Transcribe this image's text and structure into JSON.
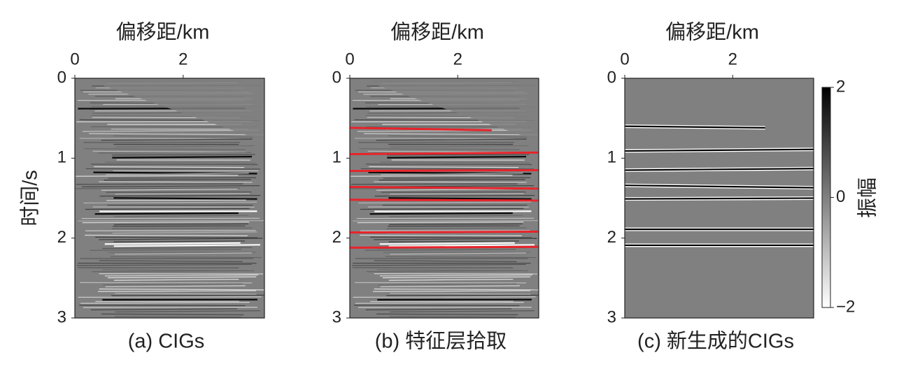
{
  "chart_data": [
    {
      "type": "seismic",
      "x_label": "偏移距/km",
      "y_label": "时间/s",
      "caption": "(a) CIGs",
      "xlim": [
        0,
        3.5
      ],
      "xticks": [
        0,
        2
      ],
      "ylim": [
        0,
        3
      ],
      "yticks": [
        0,
        1,
        2,
        3
      ]
    },
    {
      "type": "seismic",
      "x_label": "偏移距/km",
      "caption": "(b) 特征层拾取",
      "xlim": [
        0,
        3.5
      ],
      "xticks": [
        0,
        2
      ],
      "ylim": [
        0,
        3
      ],
      "yticks": [
        0,
        1,
        2,
        3
      ],
      "horizon_color": "#e8232a",
      "horizons": [
        {
          "x": [
            0,
            2.63
          ],
          "values": [
            0.62,
            0.65
          ]
        },
        {
          "x": [
            0,
            3.5
          ],
          "values": [
            0.95,
            0.93
          ]
        },
        {
          "x": [
            0,
            3.5
          ],
          "values": [
            1.16,
            1.15
          ]
        },
        {
          "x": [
            0,
            3.5
          ],
          "values": [
            1.36,
            1.38
          ]
        },
        {
          "x": [
            0,
            3.5
          ],
          "values": [
            1.52,
            1.53
          ]
        },
        {
          "x": [
            0,
            3.5
          ],
          "values": [
            1.93,
            1.92
          ]
        },
        {
          "x": [
            0,
            3.5
          ],
          "values": [
            2.12,
            2.11
          ]
        }
      ]
    },
    {
      "type": "synthetic",
      "x_label": "偏移距/km",
      "caption": "(c) 新生成的CIGs",
      "xlim": [
        0,
        3.5
      ],
      "xticks": [
        0,
        2
      ],
      "ylim": [
        0,
        3
      ],
      "yticks": [
        0,
        1,
        2,
        3
      ],
      "horizon_color": "#000000",
      "horizons": [
        {
          "x": [
            0,
            2.6
          ],
          "values": [
            0.6,
            0.62
          ]
        },
        {
          "x": [
            0,
            3.5
          ],
          "values": [
            0.91,
            0.89
          ]
        },
        {
          "x": [
            0,
            3.5
          ],
          "values": [
            1.15,
            1.13
          ]
        },
        {
          "x": [
            0,
            3.5
          ],
          "values": [
            1.34,
            1.37
          ]
        },
        {
          "x": [
            0,
            3.5
          ],
          "values": [
            1.51,
            1.5
          ]
        },
        {
          "x": [
            0,
            3.5
          ],
          "values": [
            1.89,
            1.89
          ]
        },
        {
          "x": [
            0,
            3.5
          ],
          "values": [
            2.09,
            2.09
          ]
        }
      ],
      "colorbar": {
        "label": "振幅",
        "lim": [
          -2,
          2
        ],
        "ticks": [
          {
            "value": -2,
            "label": "−2"
          },
          0,
          2
        ]
      }
    }
  ]
}
